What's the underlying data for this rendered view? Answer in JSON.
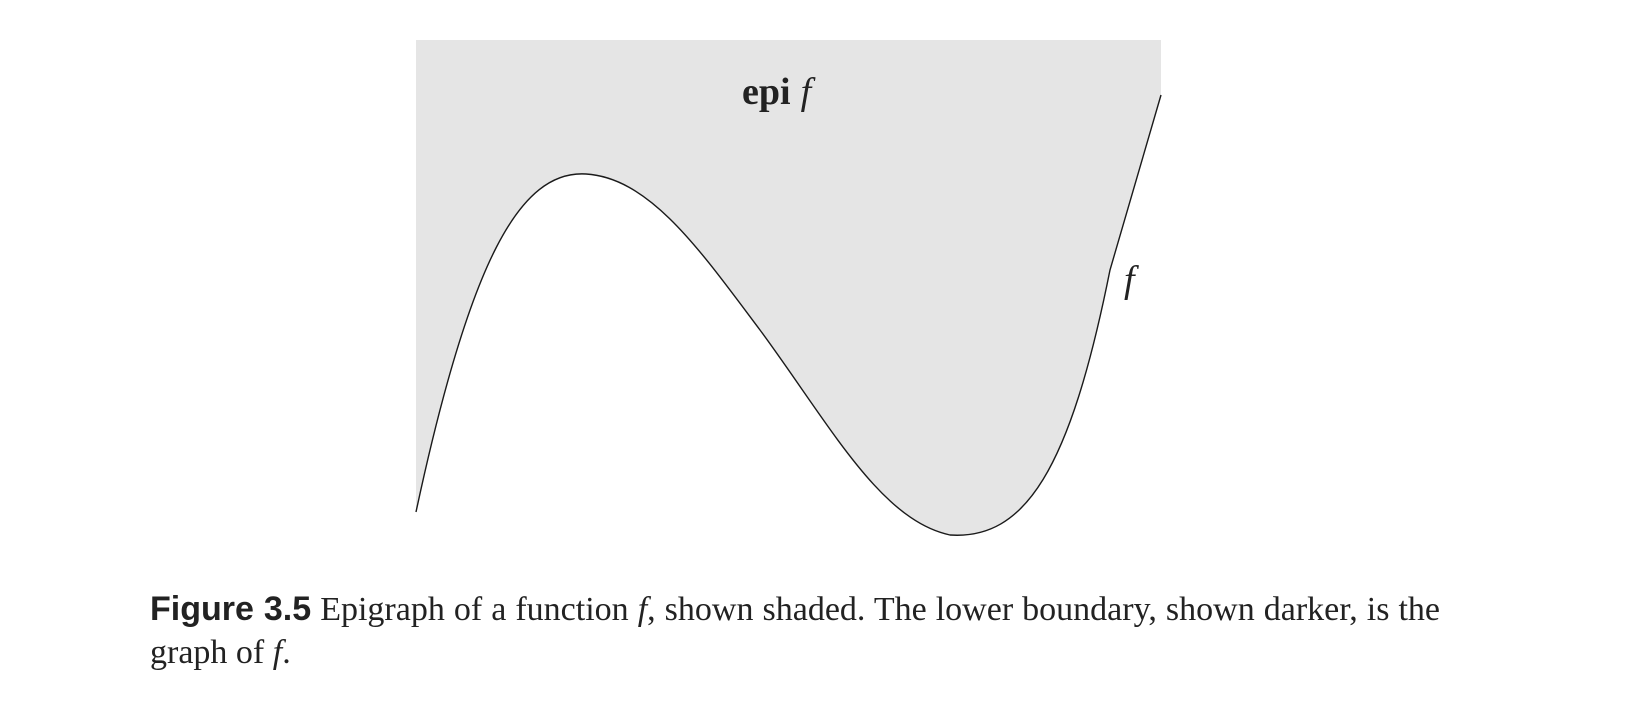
{
  "figure": {
    "epi_label_bold": "epi",
    "epi_label_var": "f",
    "curve_label": "f",
    "colors": {
      "shading": "#e5e5e5",
      "curve": "#1a1a1a",
      "text": "#222222"
    }
  },
  "caption": {
    "number": "Figure 3.5",
    "text_1": "Epigraph of a function ",
    "var_1": "f",
    "text_2": ", shown shaded.  The lower boundary, shown darker, is the graph of ",
    "var_2": "f",
    "text_3": "."
  }
}
